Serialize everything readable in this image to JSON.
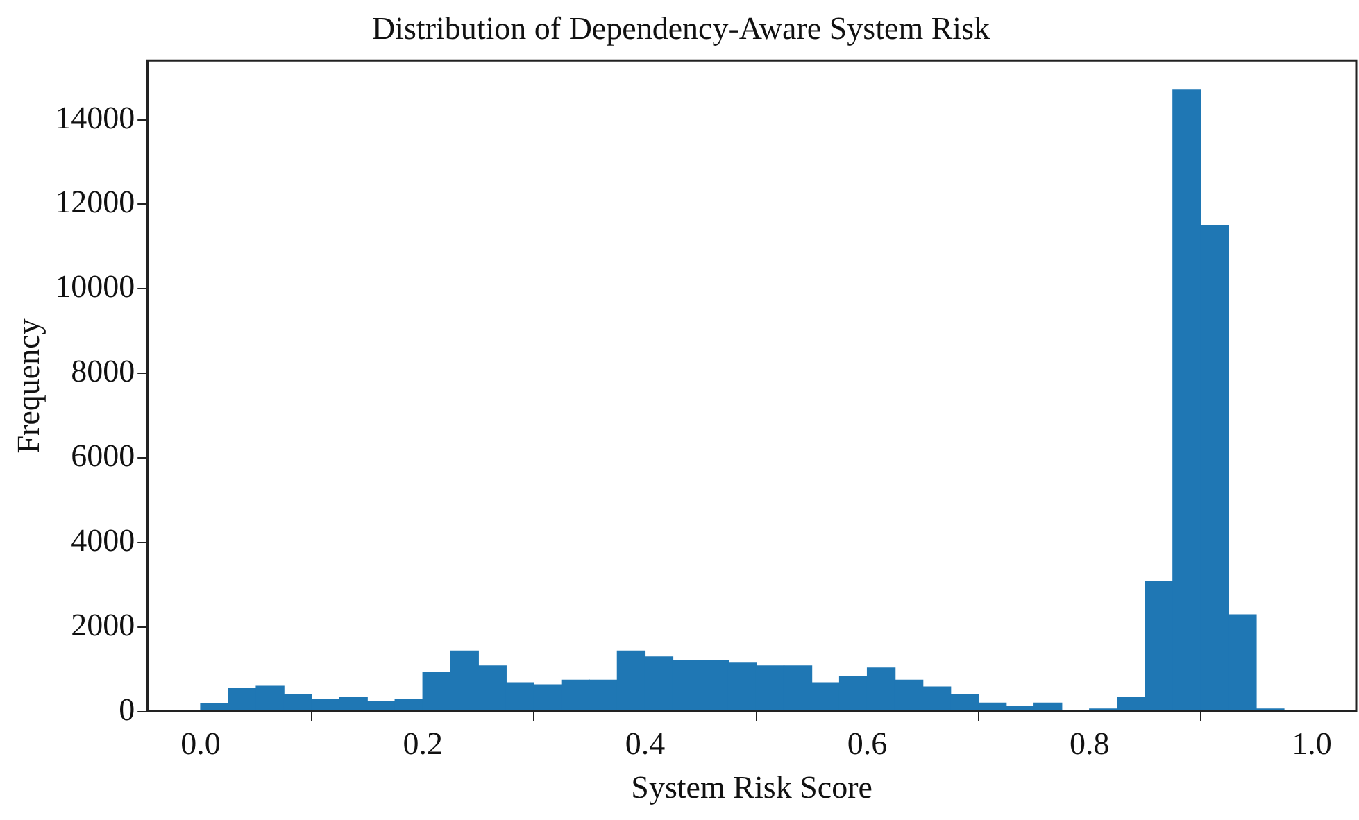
{
  "chart_data": {
    "type": "histogram",
    "title": "Distribution of Dependency-Aware System Risk",
    "xlabel": "System Risk Score",
    "ylabel": "Frequency",
    "color": "#1f77b4",
    "bins": [
      0,
      0.025,
      0.05,
      0.075,
      0.1,
      0.125,
      0.15,
      0.175,
      0.2,
      0.225,
      0.25,
      0.275,
      0.3,
      0.325,
      0.35,
      0.375,
      0.4,
      0.425,
      0.45,
      0.475,
      0.5,
      0.525,
      0.55,
      0.575,
      0.6,
      0.625,
      0.65,
      0.675,
      0.7,
      0.725,
      0.75,
      0.775,
      0.8,
      0.825,
      0.85,
      0.875,
      0.9,
      0.925,
      0.95,
      0.975
    ],
    "values": [
      180,
      540,
      600,
      400,
      280,
      330,
      230,
      280,
      930,
      1430,
      1080,
      680,
      630,
      740,
      740,
      1430,
      1290,
      1210,
      1210,
      1160,
      1080,
      1080,
      680,
      820,
      1030,
      740,
      580,
      400,
      200,
      130,
      200,
      null,
      60,
      330,
      3080,
      14700,
      11500,
      2290,
      60
    ],
    "xlim": [
      -0.048,
      1.04
    ],
    "xticks": [
      {
        "value": 0,
        "label": "0.0"
      },
      {
        "value": 0.2,
        "label": "0.2"
      },
      {
        "value": 0.4,
        "label": "0.4"
      },
      {
        "value": 0.6,
        "label": "0.6"
      },
      {
        "value": 0.8,
        "label": "0.8"
      },
      {
        "value": 1,
        "label": "1.0"
      }
    ],
    "ylim": [
      0,
      15400
    ],
    "yticks": [
      0,
      2000,
      4000,
      6000,
      8000,
      10000,
      12000,
      14000
    ],
    "grid": false,
    "legend": false
  }
}
